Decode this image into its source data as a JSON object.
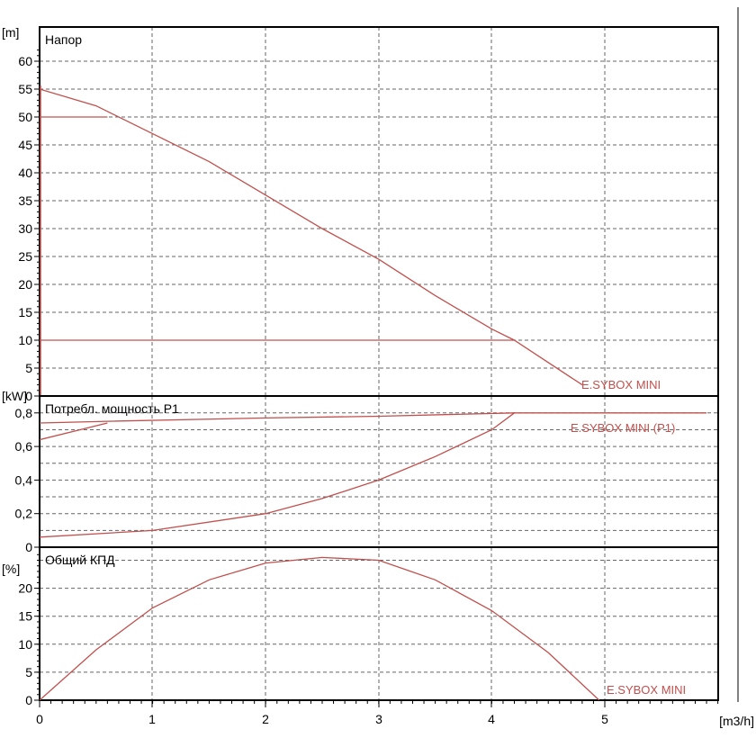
{
  "chart_data": [
    {
      "type": "line",
      "panel_title": "Напор",
      "y_unit": "[m]",
      "x_unit": "[m3/h]",
      "ylim": [
        0,
        63
      ],
      "xlim": [
        0,
        6
      ],
      "y_ticks": [
        0,
        5,
        10,
        15,
        20,
        25,
        30,
        35,
        40,
        45,
        50,
        55,
        60
      ],
      "x_ticks": [
        0,
        1,
        2,
        3,
        4,
        5
      ],
      "grid": true,
      "color": "#c0504d",
      "series": [
        {
          "name": "E.SYBOX MINI",
          "x": [
            0,
            0.5,
            1,
            1.5,
            2,
            2.5,
            3,
            3.5,
            4,
            4.2,
            4.5,
            4.8
          ],
          "y": [
            55,
            52,
            47,
            42,
            36,
            30,
            24.5,
            18,
            12,
            10,
            6,
            2
          ]
        }
      ],
      "hlines": [
        {
          "y": 50,
          "x_end": 0.6
        },
        {
          "y": 10,
          "x_end": 4.2
        }
      ]
    },
    {
      "type": "line",
      "panel_title": "Потребл. мощность P1",
      "y_unit": "[kW]",
      "ylim": [
        0,
        0.9
      ],
      "xlim": [
        0,
        6
      ],
      "y_ticks": [
        0,
        0.2,
        0.4,
        0.6,
        0.8
      ],
      "y_tick_labels": [
        "0",
        "0,2",
        "0,4",
        "0,6",
        "0,8"
      ],
      "x_ticks": [
        0,
        1,
        2,
        3,
        4,
        5
      ],
      "grid": true,
      "color": "#c0504d",
      "series": [
        {
          "name": "E.SYBOX MINI (P1)",
          "x": [
            0,
            0.6,
            2,
            3,
            4.2,
            5.9
          ],
          "y": [
            0.74,
            0.75,
            0.77,
            0.78,
            0.8,
            0.8
          ]
        },
        {
          "name": "",
          "x": [
            0,
            0.6
          ],
          "y": [
            0.64,
            0.74
          ]
        },
        {
          "name": "",
          "x": [
            0,
            1,
            2,
            2.5,
            3,
            3.5,
            4,
            4.2
          ],
          "y": [
            0.06,
            0.1,
            0.2,
            0.29,
            0.4,
            0.54,
            0.7,
            0.8
          ]
        }
      ]
    },
    {
      "type": "line",
      "panel_title": "Общий КПД",
      "y_unit": "[%]",
      "ylim": [
        0,
        26.5
      ],
      "xlim": [
        0,
        6
      ],
      "y_ticks": [
        0,
        5,
        10,
        15,
        20
      ],
      "x_ticks": [
        0,
        1,
        2,
        3,
        4,
        5
      ],
      "x_tick_labels": [
        "0",
        "1",
        "2",
        "3",
        "4",
        "5"
      ],
      "x_label": "[m3/h]",
      "grid": true,
      "color": "#c0504d",
      "series": [
        {
          "name": "E.SYBOX MINI",
          "x": [
            0,
            0.5,
            1,
            1.5,
            2,
            2.5,
            3,
            3.5,
            4,
            4.5,
            4.95
          ],
          "y": [
            0,
            9,
            16.5,
            21.5,
            24.5,
            25.5,
            25,
            21.5,
            16,
            8.5,
            0
          ]
        }
      ]
    }
  ]
}
